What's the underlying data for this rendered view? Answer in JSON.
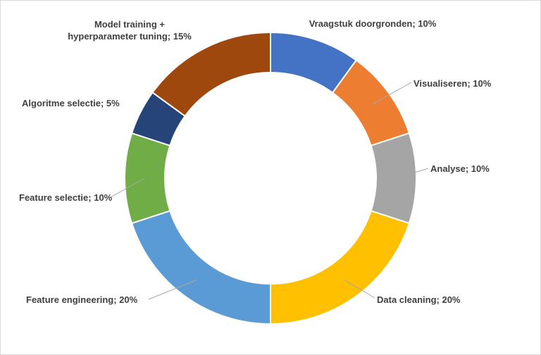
{
  "chart_data": {
    "type": "pie",
    "style": "doughnut",
    "title": "",
    "legend": "none",
    "grid": false,
    "slices": [
      {
        "label": "Vraagstuk doorgronden",
        "value": 10,
        "color": "#4472C4",
        "data_label": "Vraagstuk doorgronden; 10%"
      },
      {
        "label": "Visualiseren",
        "value": 10,
        "color": "#ED7D31",
        "data_label": "Visualiseren; 10%"
      },
      {
        "label": "Analyse",
        "value": 10,
        "color": "#A5A5A5",
        "data_label": "Analyse; 10%"
      },
      {
        "label": "Data cleaning",
        "value": 20,
        "color": "#FFC000",
        "data_label": "Data cleaning; 20%"
      },
      {
        "label": "Feature engineering",
        "value": 20,
        "color": "#5B9BD5",
        "data_label": "Feature engineering; 20%"
      },
      {
        "label": "Feature selectie",
        "value": 10,
        "color": "#70AD47",
        "data_label": "Feature selectie; 10%"
      },
      {
        "label": "Algoritme selectie",
        "value": 5,
        "color": "#264478",
        "data_label": "Algoritme selectie; 5%"
      },
      {
        "label": "Model training + hyperparameter tuning",
        "value": 15,
        "color": "#9E480E",
        "data_label_lines": [
          "Model training +",
          "hyperparameter tuning; 15%"
        ]
      }
    ]
  }
}
